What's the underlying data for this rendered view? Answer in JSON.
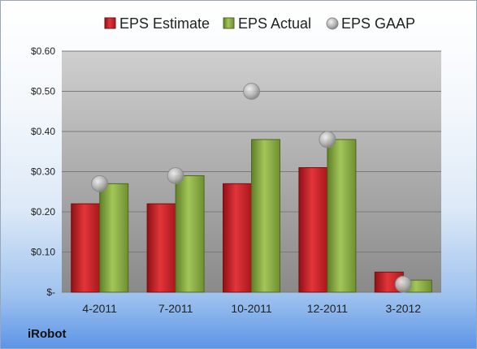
{
  "company": "iRobot",
  "colors": {
    "estimate": "#d0262b",
    "actual": "#8eb24a",
    "gaap": "#b8b8b8"
  },
  "chart_data": {
    "type": "bar",
    "categories": [
      "4-2011",
      "7-2011",
      "10-2011",
      "12-2011",
      "3-2012"
    ],
    "series": [
      {
        "name": "EPS Estimate",
        "type": "bar",
        "values": [
          0.22,
          0.22,
          0.27,
          0.31,
          0.05
        ]
      },
      {
        "name": "EPS Actual",
        "type": "bar",
        "values": [
          0.27,
          0.29,
          0.38,
          0.38,
          0.03
        ]
      },
      {
        "name": "EPS GAAP",
        "type": "scatter",
        "values": [
          0.27,
          0.29,
          0.5,
          0.38,
          0.02
        ]
      }
    ],
    "y_ticks": [
      {
        "value": 0.6,
        "label": "$0.60"
      },
      {
        "value": 0.5,
        "label": "$0.50"
      },
      {
        "value": 0.4,
        "label": "$0.40"
      },
      {
        "value": 0.3,
        "label": "$0.30"
      },
      {
        "value": 0.2,
        "label": "$0.20"
      },
      {
        "value": 0.1,
        "label": "$0.10"
      },
      {
        "value": 0.0,
        "label": "$-"
      }
    ],
    "ylim": [
      0,
      0.6
    ],
    "grid": true,
    "legend_position": "top"
  }
}
